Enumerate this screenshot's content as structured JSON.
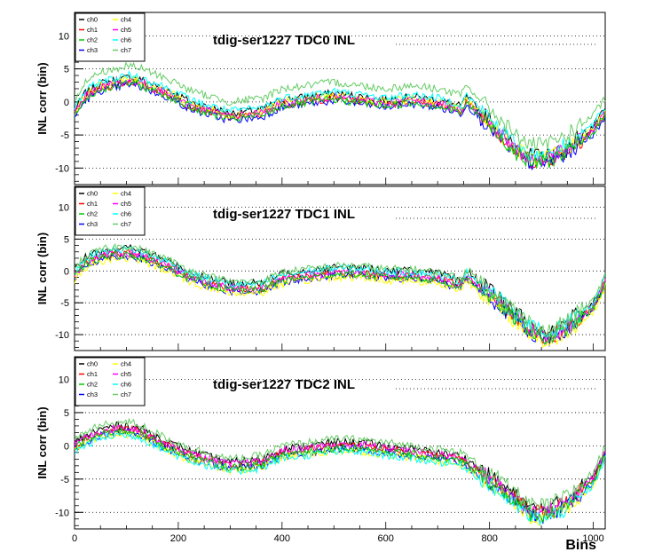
{
  "chart_data": {
    "type": "line",
    "x_range": [
      0,
      1023
    ],
    "y_range": [
      -12.5,
      13
    ],
    "ylabel": "INL corr (bin)",
    "xlabel": "Bins",
    "x_ticks": [
      0,
      200,
      400,
      600,
      800,
      1000
    ],
    "y_ticks": [
      10,
      5,
      0,
      -5,
      -10
    ],
    "grid_y": true,
    "legend": {
      "placement": "top-left",
      "entries": [
        {
          "name": "ch0",
          "color": "#000000"
        },
        {
          "name": "ch1",
          "color": "#ff0000"
        },
        {
          "name": "ch2",
          "color": "#00cc00"
        },
        {
          "name": "ch3",
          "color": "#0000ff"
        },
        {
          "name": "ch4",
          "color": "#ffff00"
        },
        {
          "name": "ch5",
          "color": "#ff00ff"
        },
        {
          "name": "ch6",
          "color": "#00ffff"
        },
        {
          "name": "ch7",
          "color": "#66cc66"
        }
      ]
    },
    "panels": [
      {
        "title": "tdig-ser1227 TDC0 INL",
        "x": [
          0,
          20,
          50,
          80,
          110,
          130,
          180,
          230,
          300,
          360,
          400,
          450,
          500,
          550,
          600,
          650,
          700,
          745,
          755,
          800,
          850,
          880,
          910,
          950,
          1000,
          1023
        ],
        "y": [
          -1.5,
          1.0,
          2.5,
          3.0,
          3.5,
          3.0,
          1.5,
          -0.5,
          -2.0,
          -1.5,
          0.0,
          0.5,
          1.0,
          0.5,
          0.0,
          0.5,
          0.0,
          -1.0,
          0.5,
          -3.0,
          -7.0,
          -8.5,
          -8.5,
          -7.0,
          -4.0,
          -1.5
        ],
        "offsets": {
          "ch0": 0.3,
          "ch1": -0.4,
          "ch2": -0.6,
          "ch3": -0.8,
          "ch4": 0.0,
          "ch5": -0.2,
          "ch6": 0.6,
          "ch7": 2.0
        }
      },
      {
        "title": "tdig-ser1227 TDC1 INL",
        "x": [
          0,
          20,
          50,
          80,
          110,
          130,
          180,
          230,
          300,
          360,
          400,
          450,
          500,
          550,
          600,
          650,
          700,
          745,
          755,
          800,
          850,
          880,
          910,
          950,
          1000,
          1023
        ],
        "y": [
          -0.5,
          1.5,
          2.5,
          3.0,
          3.0,
          2.5,
          1.0,
          -1.0,
          -2.5,
          -2.5,
          -1.0,
          -0.5,
          0.0,
          0.0,
          -0.5,
          -0.5,
          -1.0,
          -2.0,
          -0.5,
          -3.5,
          -7.0,
          -9.0,
          -10.5,
          -8.5,
          -5.5,
          -1.5
        ],
        "offsets": {
          "ch0": 0.6,
          "ch1": -0.3,
          "ch2": -0.5,
          "ch3": -0.7,
          "ch4": -1.0,
          "ch5": -0.2,
          "ch6": 0.4,
          "ch7": 0.8
        }
      },
      {
        "title": "tdig-ser1227 TDC2 INL",
        "x": [
          0,
          20,
          50,
          80,
          110,
          130,
          180,
          230,
          300,
          360,
          400,
          450,
          500,
          550,
          600,
          650,
          700,
          745,
          755,
          800,
          850,
          880,
          910,
          950,
          1000,
          1023
        ],
        "y": [
          0.0,
          1.0,
          2.0,
          2.5,
          2.5,
          2.0,
          0.0,
          -1.5,
          -3.0,
          -2.5,
          -1.0,
          -0.5,
          0.0,
          0.0,
          -0.5,
          -1.0,
          -1.5,
          -2.0,
          -2.5,
          -5.0,
          -8.0,
          -10.0,
          -10.0,
          -8.5,
          -5.0,
          -1.0
        ],
        "offsets": {
          "ch0": 0.5,
          "ch1": 0.0,
          "ch2": -0.3,
          "ch3": -0.5,
          "ch4": -0.8,
          "ch5": 0.2,
          "ch6": -0.9,
          "ch7": 1.0
        }
      }
    ]
  }
}
